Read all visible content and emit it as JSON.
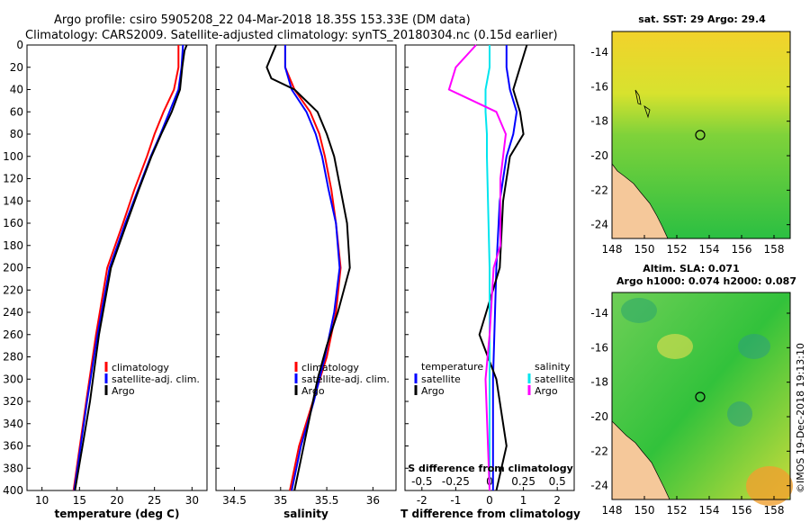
{
  "title": {
    "line1": "Argo profile: csiro 5905208_22 04-Mar-2018 18.35S 153.33E (DM data)",
    "line2": "Climatology: CARS2009. Satellite-adjusted climatology: synTS_20180304.nc (0.15d earlier)"
  },
  "colors": {
    "climatology": "#ff0000",
    "satellite": "#0000ff",
    "argo": "#000000",
    "sat_s": "#00e5ee",
    "clim_s": "#ff00ff"
  },
  "chart_data": [
    {
      "type": "line",
      "id": "temperature",
      "xlabel": "temperature (deg C)",
      "ylabel": "",
      "xlim": [
        8,
        32
      ],
      "ylim": [
        400,
        0
      ],
      "xticks": [
        "10",
        "15",
        "20",
        "25",
        "30"
      ],
      "yticks": [
        "0",
        "20",
        "40",
        "60",
        "80",
        "100",
        "120",
        "140",
        "160",
        "180",
        "200",
        "220",
        "240",
        "260",
        "280",
        "300",
        "320",
        "340",
        "360",
        "380",
        "400"
      ],
      "legend": [
        "climatology",
        "satellite-adj. clim.",
        "Argo"
      ],
      "series": [
        {
          "name": "climatology",
          "depth": [
            0,
            20,
            40,
            60,
            80,
            100,
            130,
            160,
            200,
            260,
            320,
            400
          ],
          "values": [
            28.2,
            28.2,
            27.6,
            26.2,
            25.0,
            24.0,
            22.3,
            20.8,
            18.7,
            17.2,
            15.9,
            14.2
          ]
        },
        {
          "name": "satellite-adj. clim.",
          "depth": [
            0,
            20,
            40,
            60,
            80,
            100,
            130,
            160,
            200,
            260,
            320,
            400
          ],
          "values": [
            28.8,
            28.6,
            28.2,
            27.0,
            25.8,
            24.5,
            22.8,
            21.1,
            19.0,
            17.4,
            16.0,
            14.3
          ]
        },
        {
          "name": "Argo",
          "depth": [
            0,
            5,
            20,
            40,
            60,
            80,
            100,
            130,
            160,
            200,
            260,
            300,
            320,
            360,
            400
          ],
          "values": [
            29.3,
            29.0,
            28.7,
            28.4,
            27.3,
            25.9,
            24.6,
            22.9,
            21.3,
            19.2,
            17.6,
            16.8,
            16.4,
            15.4,
            14.4
          ]
        }
      ]
    },
    {
      "type": "line",
      "id": "salinity",
      "xlabel": "salinity",
      "ylabel": "",
      "xlim": [
        34.3,
        36.25
      ],
      "ylim": [
        400,
        0
      ],
      "xticks": [
        "34.5",
        "35",
        "35.5",
        "36"
      ],
      "legend": [
        "climatology",
        "satellite-adj. clim.",
        "Argo"
      ],
      "series": [
        {
          "name": "climatology",
          "depth": [
            0,
            20,
            40,
            60,
            80,
            100,
            130,
            160,
            200,
            240,
            280,
            320,
            360,
            400
          ],
          "values": [
            35.05,
            35.05,
            35.15,
            35.32,
            35.42,
            35.48,
            35.55,
            35.6,
            35.65,
            35.6,
            35.5,
            35.35,
            35.2,
            35.1
          ]
        },
        {
          "name": "satellite-adj. clim.",
          "depth": [
            0,
            20,
            40,
            60,
            80,
            100,
            130,
            160,
            200,
            240,
            280,
            320,
            360,
            400
          ],
          "values": [
            35.05,
            35.05,
            35.12,
            35.28,
            35.38,
            35.45,
            35.52,
            35.6,
            35.64,
            35.58,
            35.48,
            35.36,
            35.22,
            35.12
          ]
        },
        {
          "name": "Argo",
          "depth": [
            0,
            10,
            20,
            30,
            40,
            60,
            80,
            100,
            130,
            160,
            200,
            240,
            270,
            300,
            340,
            380,
            400
          ],
          "values": [
            34.95,
            34.9,
            34.85,
            34.9,
            35.15,
            35.4,
            35.5,
            35.58,
            35.65,
            35.72,
            35.75,
            35.62,
            35.5,
            35.4,
            35.3,
            35.2,
            35.15
          ]
        }
      ]
    },
    {
      "type": "line",
      "id": "difference",
      "xlabel": "T difference from climatology",
      "xlabel_top": "S difference from climatology",
      "xlim": [
        -2.5,
        2.5
      ],
      "ylim": [
        400,
        0
      ],
      "xticks": [
        "-2",
        "-1",
        "0",
        "1",
        "2"
      ],
      "xticks_top": [
        "-0.5",
        "-0.25",
        "0",
        "0.25",
        "0.5"
      ],
      "legend_t": {
        "title": "temperature",
        "items": [
          "satellite",
          "Argo"
        ]
      },
      "legend_s": {
        "title": "salinity",
        "items": [
          "satellite",
          "Argo"
        ]
      },
      "series": [
        {
          "name": "T satellite",
          "depth": [
            0,
            20,
            40,
            60,
            80,
            100,
            140,
            200,
            300,
            400
          ],
          "values": [
            0.5,
            0.5,
            0.6,
            0.8,
            0.7,
            0.5,
            0.3,
            0.2,
            0.1,
            0.1
          ]
        },
        {
          "name": "T Argo",
          "depth": [
            0,
            20,
            40,
            60,
            80,
            100,
            140,
            200,
            260,
            300,
            360,
            400
          ],
          "values": [
            1.1,
            0.9,
            0.7,
            0.9,
            1.0,
            0.6,
            0.4,
            0.3,
            -0.3,
            0.2,
            0.5,
            0.2
          ]
        },
        {
          "name": "S satellite",
          "depth": [
            0,
            20,
            40,
            60,
            80,
            100,
            200,
            300,
            400
          ],
          "values": [
            0.0,
            0.0,
            -0.03,
            -0.03,
            -0.02,
            -0.02,
            0.0,
            0.0,
            0.0
          ]
        },
        {
          "name": "S Argo",
          "depth": [
            0,
            20,
            40,
            60,
            80,
            120,
            180,
            200,
            260,
            300,
            400
          ],
          "values": [
            -0.1,
            -0.25,
            -0.3,
            0.05,
            0.12,
            0.08,
            0.08,
            0.03,
            0.0,
            -0.03,
            0.0
          ]
        }
      ]
    }
  ],
  "maps": {
    "sst": {
      "title": "sat. SST: 29 Argo: 29.4",
      "xticks": [
        "148",
        "150",
        "152",
        "154",
        "156",
        "158"
      ],
      "yticks": [
        "-14",
        "-16",
        "-18",
        "-20",
        "-22",
        "-24"
      ]
    },
    "sla": {
      "title1": "Altim. SLA: 0.071",
      "title2": "Argo h1000: 0.074 h2000: 0.087",
      "xticks": [
        "148",
        "150",
        "152",
        "154",
        "156",
        "158"
      ],
      "yticks": [
        "-14",
        "-16",
        "-18",
        "-20",
        "-22",
        "-24"
      ]
    }
  },
  "footer": {
    "credit": "©IMOS 19-Dec-2018 19:13:10"
  }
}
